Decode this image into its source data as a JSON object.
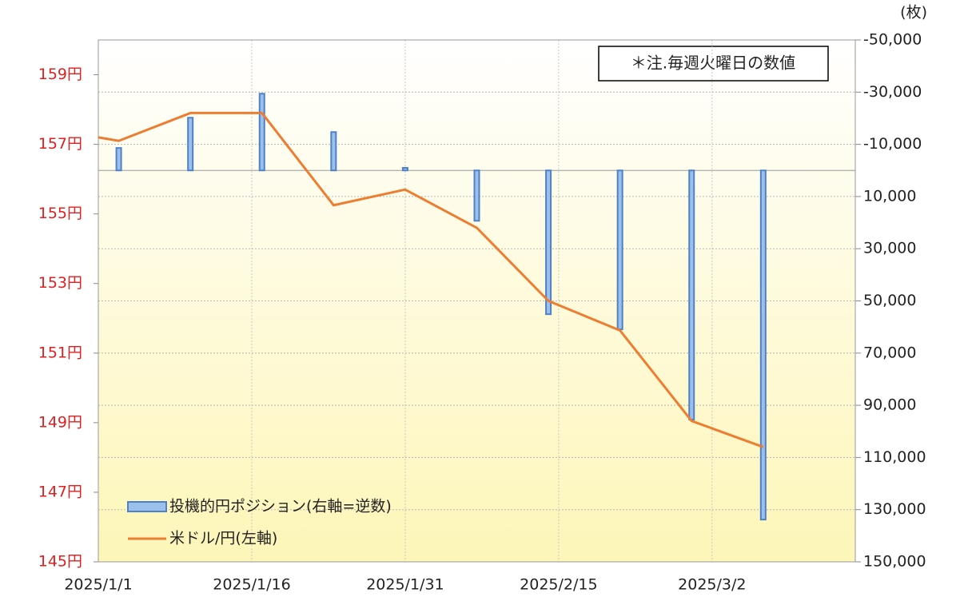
{
  "chart_data": {
    "type": "combo",
    "annotation": "＊注.毎週火曜日の数値",
    "y2_unit": "(枚)",
    "xlim": [
      "2025/1/1",
      "2025/3/16"
    ],
    "xticks": [
      "2025/1/1",
      "2025/1/16",
      "2025/1/31",
      "2025/2/15",
      "2025/3/2"
    ],
    "ylim": [
      145,
      160
    ],
    "yticks": [
      {
        "value": 145,
        "label": "145円"
      },
      {
        "value": 147,
        "label": "147円"
      },
      {
        "value": 149,
        "label": "149円"
      },
      {
        "value": 151,
        "label": "151円"
      },
      {
        "value": 153,
        "label": "153円"
      },
      {
        "value": 155,
        "label": "155円"
      },
      {
        "value": 157,
        "label": "157円"
      },
      {
        "value": 159,
        "label": "159円"
      }
    ],
    "y2lim": [
      -50000,
      150000
    ],
    "y2_inverted": true,
    "y2ticks": [
      {
        "value": -50000,
        "label": "-50,000"
      },
      {
        "value": -30000,
        "label": "-30,000"
      },
      {
        "value": -10000,
        "label": "-10,000"
      },
      {
        "value": 10000,
        "label": "10,000"
      },
      {
        "value": 30000,
        "label": "30,000"
      },
      {
        "value": 50000,
        "label": "50,000"
      },
      {
        "value": 70000,
        "label": "70,000"
      },
      {
        "value": 90000,
        "label": "90,000"
      },
      {
        "value": 110000,
        "label": "110,000"
      },
      {
        "value": 130000,
        "label": "130,000"
      },
      {
        "value": 150000,
        "label": "150,000"
      }
    ],
    "grid": true,
    "legend": "lower left",
    "series": [
      {
        "name": "投機的円ポジション(右軸=逆数)",
        "type": "bar",
        "axis": "y2",
        "color": "#4f81c7",
        "x": [
          "2025/1/3",
          "2025/1/10",
          "2025/1/17",
          "2025/1/24",
          "2025/1/31",
          "2025/2/7",
          "2025/2/14",
          "2025/2/21",
          "2025/2/28",
          "2025/3/7"
        ],
        "values": [
          -8600,
          -20200,
          -29400,
          -14700,
          -1000,
          19300,
          55100,
          60900,
          95500,
          133800
        ]
      },
      {
        "name": "米ドル/円(左軸)",
        "type": "line",
        "axis": "y",
        "color": "#ed7d31",
        "x": [
          "2025/1/1",
          "2025/1/3",
          "2025/1/10",
          "2025/1/17",
          "2025/1/24",
          "2025/1/31",
          "2025/2/7",
          "2025/2/14",
          "2025/2/21",
          "2025/2/28",
          "2025/3/7"
        ],
        "values": [
          157.2,
          157.1,
          157.9,
          157.9,
          155.25,
          155.7,
          154.6,
          152.5,
          151.65,
          149.05,
          148.3
        ]
      }
    ]
  }
}
